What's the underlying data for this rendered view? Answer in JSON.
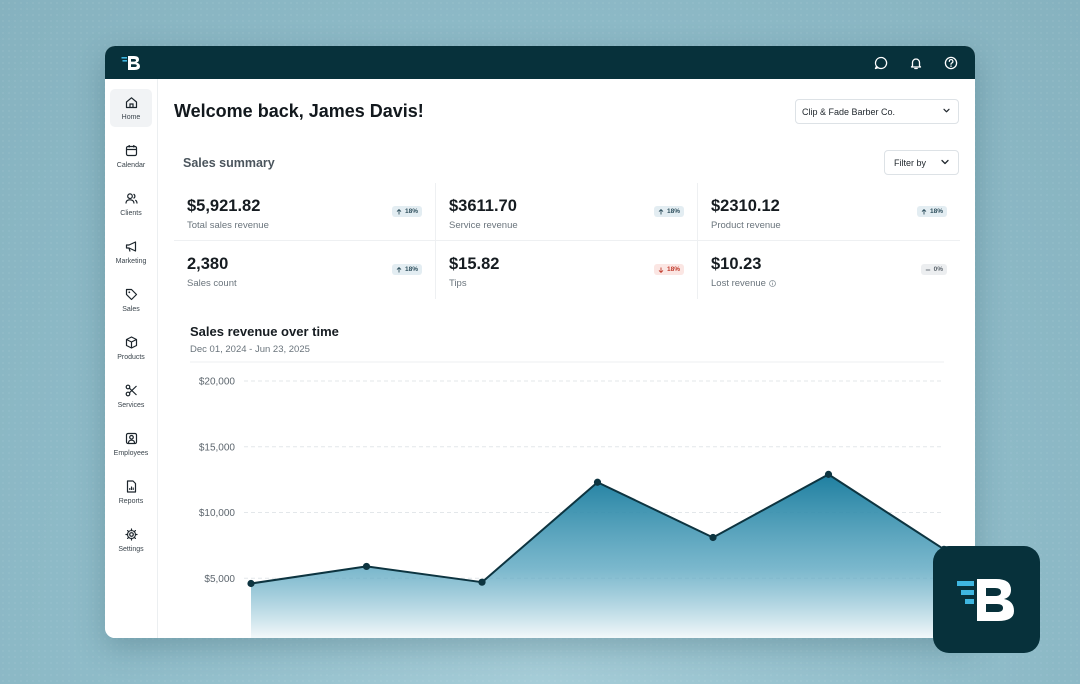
{
  "brand": {
    "name_icon": "b-logo-icon",
    "accent": "#3fb6e0",
    "dark": "#07313b"
  },
  "topbar": {
    "icons": [
      "message-icon",
      "bell-icon",
      "help-icon"
    ]
  },
  "sidebar": {
    "items": [
      {
        "label": "Home",
        "icon": "home-icon",
        "active": true
      },
      {
        "label": "Calendar",
        "icon": "calendar-icon"
      },
      {
        "label": "Clients",
        "icon": "clients-icon"
      },
      {
        "label": "Marketing",
        "icon": "megaphone-icon"
      },
      {
        "label": "Sales",
        "icon": "tag-icon"
      },
      {
        "label": "Products",
        "icon": "box-icon"
      },
      {
        "label": "Services",
        "icon": "scissors-icon"
      },
      {
        "label": "Employees",
        "icon": "employee-icon"
      },
      {
        "label": "Reports",
        "icon": "report-icon"
      },
      {
        "label": "Settings",
        "icon": "gear-icon"
      }
    ]
  },
  "header": {
    "welcome": "Welcome back, James Davis!",
    "company": "Clip & Fade Barber Co."
  },
  "summary": {
    "title": "Sales summary",
    "filter_label": "Filter by",
    "stats": [
      {
        "value": "$5,921.82",
        "label": "Total sales revenue",
        "change": "18%",
        "trend": "up"
      },
      {
        "value": "$3611.70",
        "label": "Service revenue",
        "change": "18%",
        "trend": "up"
      },
      {
        "value": "$2310.12",
        "label": "Product revenue",
        "change": "18%",
        "trend": "up"
      },
      {
        "value": "2,380",
        "label": "Sales count",
        "change": "18%",
        "trend": "up"
      },
      {
        "value": "$15.82",
        "label": "Tips",
        "change": "18%",
        "trend": "down"
      },
      {
        "value": "$10.23",
        "label": "Lost revenue",
        "change": "0%",
        "trend": "flat",
        "info": true
      }
    ]
  },
  "chart": {
    "title": "Sales revenue over time",
    "range": "Dec 01, 2024 - Jun 23, 2025"
  },
  "chart_data": {
    "type": "area",
    "title": "Sales revenue over time",
    "subtitle": "Dec 01, 2024 - Jun 23, 2025",
    "xlabel": "",
    "ylabel": "",
    "ylim": [
      0,
      20000
    ],
    "yticks": [
      5000,
      10000,
      15000,
      20000
    ],
    "ytick_labels": [
      "$5,000",
      "$10,000",
      "$15,000",
      "$20,000"
    ],
    "grid": true,
    "series": [
      {
        "values": [
          4600,
          5900,
          4700,
          12300,
          8100,
          12900,
          7200
        ]
      }
    ],
    "color": "#1e7fa0"
  }
}
